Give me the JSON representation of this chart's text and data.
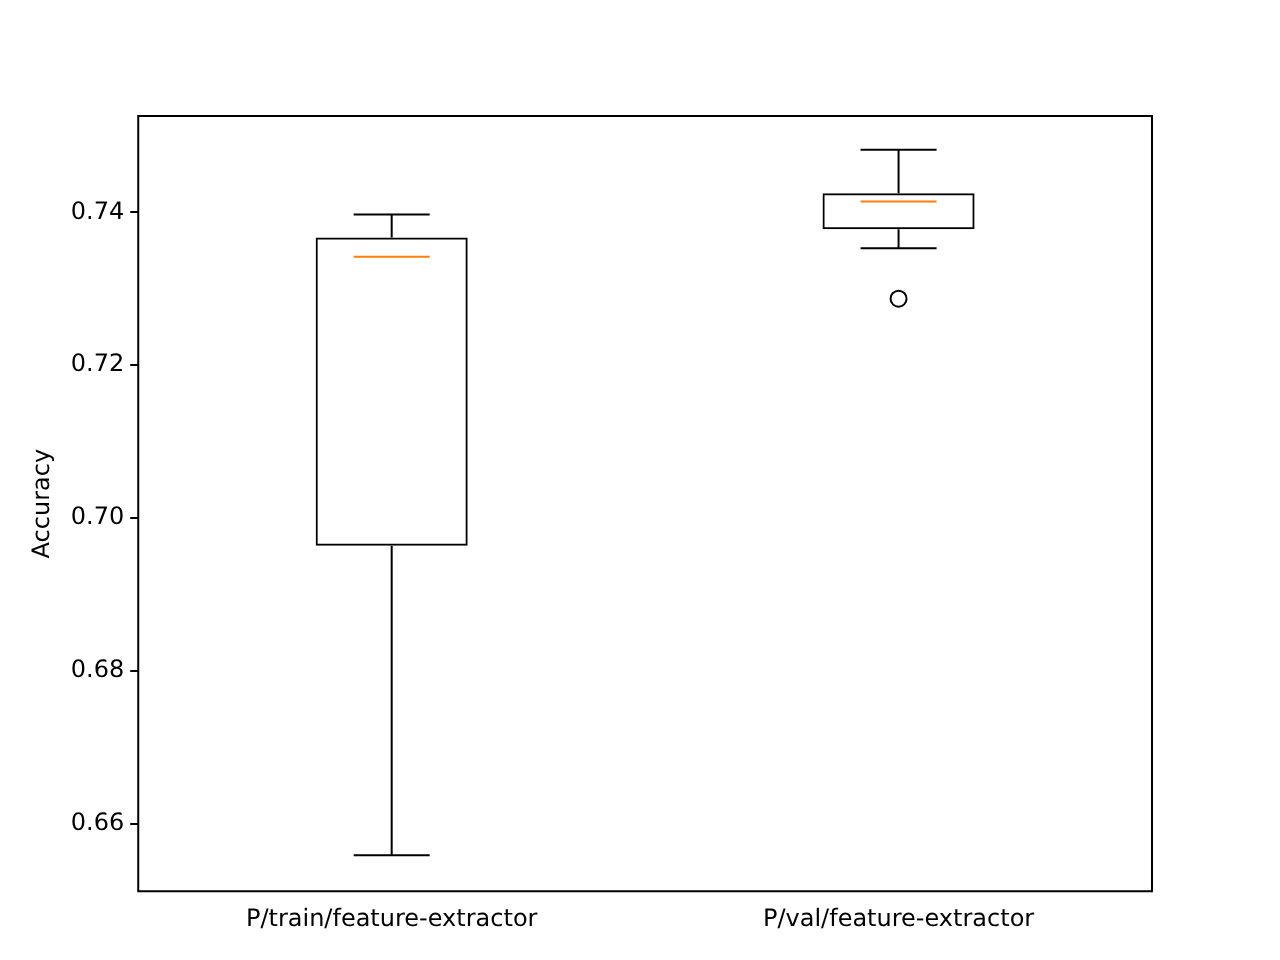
{
  "chart_data": {
    "type": "box",
    "ylabel": "Accuracy",
    "categories": [
      "P/train/feature-extractor",
      "P/val/feature-extractor"
    ],
    "boxes": [
      {
        "low": 0.6559,
        "q1": 0.6964,
        "median": 0.7342,
        "q3": 0.7367,
        "high": 0.7397
      },
      {
        "low": 0.7353,
        "q1": 0.7378,
        "median": 0.7414,
        "q3": 0.7425,
        "high": 0.7482,
        "outliers": [
          0.7287
        ]
      }
    ],
    "ylim": [
      0.6512,
      0.7526
    ],
    "yticks": [
      {
        "value": 0.66,
        "label": "0.66"
      },
      {
        "value": 0.68,
        "label": "0.68"
      },
      {
        "value": 0.7,
        "label": "0.70"
      },
      {
        "value": 0.72,
        "label": "0.72"
      },
      {
        "value": 0.74,
        "label": "0.74"
      }
    ],
    "grid": false,
    "legend": false,
    "color": "#000000"
  }
}
